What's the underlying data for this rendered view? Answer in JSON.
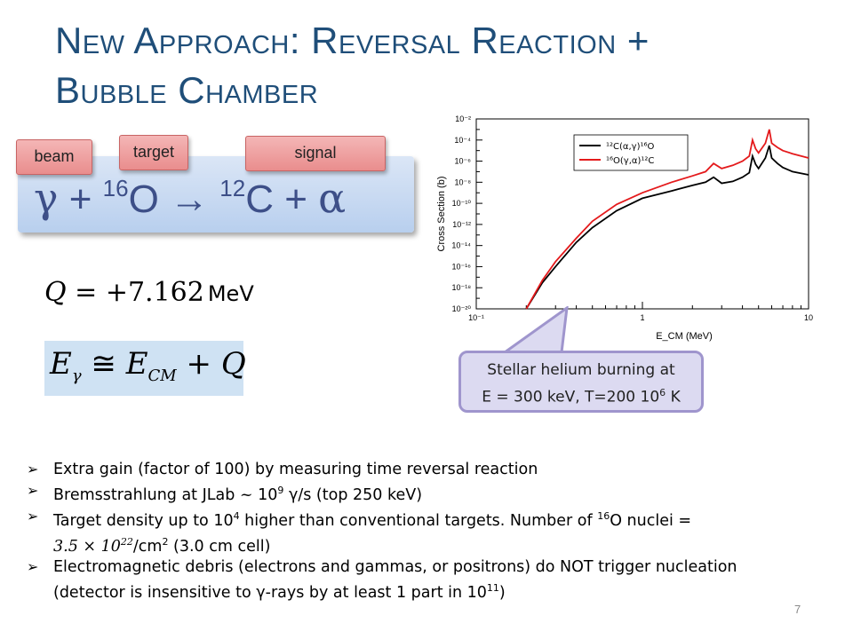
{
  "slide": {
    "title_line1": "New Approach: Reversal Reaction +",
    "title_line2": "Bubble Chamber",
    "page_number": "7"
  },
  "reaction": {
    "gamma": "γ",
    "plus1": " + ",
    "o_mass": "16",
    "o_sym": "O ",
    "arrow": "→ ",
    "c_mass": "12",
    "c_sym": "C",
    "plus2": " + ",
    "alpha": "α",
    "labels": {
      "beam": "beam",
      "target": "target",
      "signal": "signal"
    }
  },
  "equations": {
    "q_lhs": "Q",
    "q_rhs": " = +7.162",
    "q_unit": "MeV",
    "e_gamma": "E",
    "e_gamma_sub": "γ",
    "approx": " ≅ ",
    "e_cm": "E",
    "e_cm_sub": "CM",
    "plus_q": " + Q"
  },
  "chart_data": {
    "type": "line",
    "ylabel": "Cross Section (b)",
    "xlabel": "E_CM (MeV)",
    "x_scale": "log",
    "y_scale": "log",
    "xlim": [
      0.1,
      10
    ],
    "ylim": [
      1e-20,
      0.01
    ],
    "x_ticks": [
      "10⁻¹",
      "1",
      "10"
    ],
    "y_ticks": [
      "10⁻²⁰",
      "10⁻¹⁸",
      "10⁻¹⁶",
      "10⁻¹⁴",
      "10⁻¹²",
      "10⁻¹⁰",
      "10⁻⁸",
      "10⁻⁶",
      "10⁻⁴",
      "10⁻²"
    ],
    "legend_position": "top-right",
    "series": [
      {
        "name": "¹²C(α,γ)¹⁶O",
        "color": "#000000",
        "x": [
          0.2,
          0.25,
          0.3,
          0.4,
          0.5,
          0.7,
          1.0,
          1.5,
          2.0,
          2.4,
          2.68,
          3.0,
          3.5,
          4.0,
          4.4,
          4.6,
          4.8,
          5.0,
          5.5,
          5.8,
          6.0,
          6.5,
          7.0,
          8.0,
          10.0
        ],
        "y": [
          1e-20,
          3e-18,
          1e-16,
          2e-14,
          5e-13,
          2e-11,
          3e-10,
          1.5e-09,
          5e-09,
          1e-08,
          3e-08,
          8e-09,
          1.2e-08,
          3e-08,
          8e-08,
          3e-06,
          5e-07,
          2e-07,
          2e-06,
          3e-05,
          2e-06,
          6e-07,
          2.5e-07,
          1e-07,
          5e-08
        ]
      },
      {
        "name": "¹⁶O(γ,α)¹²C",
        "color": "#e41a1c",
        "x": [
          0.2,
          0.25,
          0.3,
          0.4,
          0.5,
          0.7,
          1.0,
          1.5,
          2.0,
          2.4,
          2.68,
          3.0,
          3.5,
          4.0,
          4.4,
          4.6,
          4.8,
          5.0,
          5.5,
          5.8,
          6.0,
          6.5,
          7.0,
          8.0,
          10.0
        ],
        "y": [
          1e-20,
          5e-18,
          3e-16,
          5e-14,
          2e-12,
          8e-11,
          1e-09,
          1e-08,
          4e-08,
          1e-07,
          6e-07,
          2e-07,
          4e-07,
          1e-06,
          3e-06,
          0.0001,
          1.5e-05,
          6e-06,
          5e-05,
          0.001,
          5e-05,
          2e-05,
          1e-05,
          5e-06,
          2e-06
        ]
      }
    ]
  },
  "callout": {
    "line1": "Stellar helium burning at",
    "line2_a": "E = 300 keV, T=200 10",
    "line2_sup": "6",
    "line2_b": " K"
  },
  "bullets": {
    "b1": "Extra gain (factor of 100) by measuring time reversal reaction",
    "b2_a": "Bremsstrahlung at JLab",
    "b2_sim": " ~ ",
    "b2_b": "10",
    "b2_sup": "9",
    "b2_c": " γ/s (top 250 keV)",
    "b3_a": "Target density up to 10",
    "b3_sup": "4",
    "b3_b": " higher than conventional targets. Number of ",
    "b3_sup2": "16",
    "b3_c": "O nuclei =",
    "b3_math": "3.5 × 10",
    "b3_math_sup": "22",
    "b3_d": "/cm",
    "b3_sup3": "2",
    "b3_e": " (3.0 cm cell)",
    "b4_a": "Electromagnetic debris (electrons and gammas, or positrons) do NOT trigger nucleation",
    "b4_b": "(detector is insensitive to γ-rays by at least 1 part in 10",
    "b4_sup": "11",
    "b4_c": ")"
  },
  "colors": {
    "title": "#1f4e79",
    "reaction_text": "#3d4f88",
    "tag_fill": "#e98d8d",
    "callout_fill": "#dcdaf1",
    "callout_border": "#9f95cd"
  }
}
